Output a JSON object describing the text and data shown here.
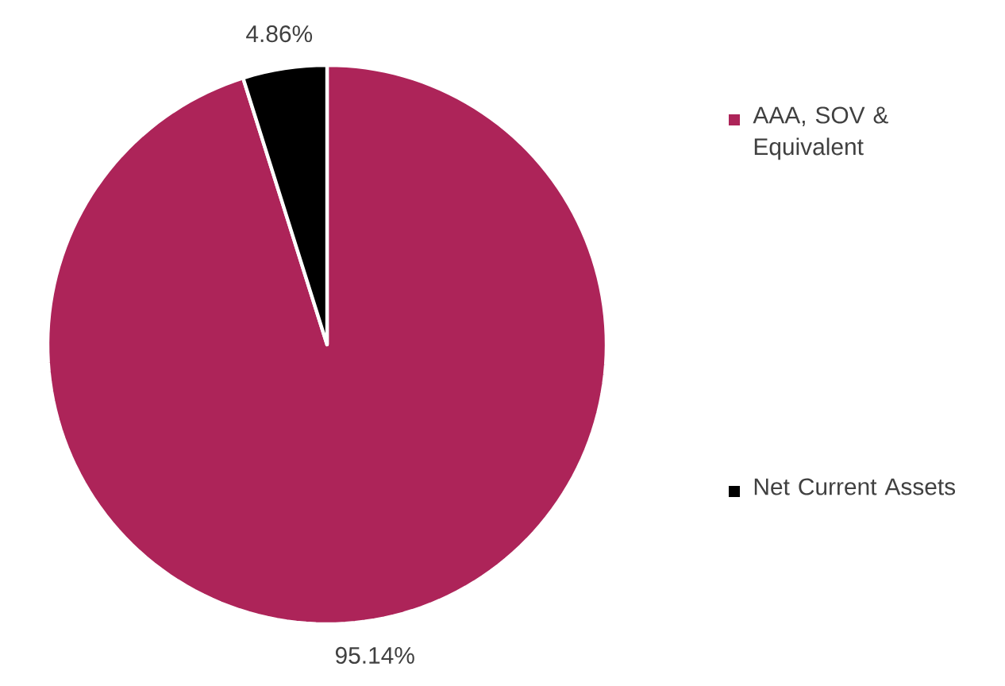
{
  "chart_data": {
    "type": "pie",
    "categories": [
      "AAA, SOV & Equivalent",
      "Net Current Assets"
    ],
    "values": [
      95.14,
      4.86
    ],
    "colors": [
      "#ad2459",
      "#000000"
    ],
    "value_labels": [
      "95.14%",
      "4.86%"
    ],
    "legend": "right"
  }
}
